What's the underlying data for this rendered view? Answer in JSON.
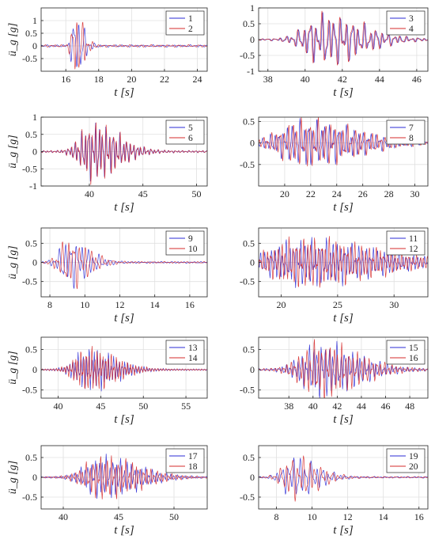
{
  "figure": {
    "ylabel": "ü_g [g]",
    "xlabel": "t [s]"
  },
  "chart_data": [
    {
      "type": "line",
      "xlabel": "t [s]",
      "ylabel": "ü_g [g]",
      "xlim": [
        14.5,
        24.6
      ],
      "ylim": [
        -1.0,
        1.5
      ],
      "xticks": [
        16,
        18,
        20,
        22,
        24
      ],
      "yticks": [
        -0.5,
        0,
        0.5,
        1
      ],
      "grid": true,
      "legend": "top-right",
      "event_time": 16.6,
      "env": [
        0.3,
        0.6,
        1.45
      ],
      "series": [
        {
          "name": "1",
          "color": "#2b2bd6"
        },
        {
          "name": "2",
          "color": "#d62b2b"
        }
      ]
    },
    {
      "type": "line",
      "xlabel": "t [s]",
      "ylabel": "",
      "xlim": [
        37.5,
        46.6
      ],
      "ylim": [
        -1.0,
        1.0
      ],
      "xticks": [
        38,
        40,
        42,
        44,
        46
      ],
      "yticks": [
        -1,
        -0.5,
        0,
        0.5,
        1
      ],
      "grid": true,
      "legend": "top-right",
      "event_time": 41.0,
      "env": [
        1.3,
        0.7,
        0.9
      ],
      "series": [
        {
          "name": "3",
          "color": "#2b2bd6"
        },
        {
          "name": "4",
          "color": "#d62b2b"
        }
      ]
    },
    {
      "type": "line",
      "xlabel": "t [s]",
      "ylabel": "ü_g [g]",
      "xlim": [
        35.5,
        51.0
      ],
      "ylim": [
        -1.0,
        1.0
      ],
      "xticks": [
        40,
        45,
        50
      ],
      "yticks": [
        -1,
        -0.5,
        0,
        0.5,
        1
      ],
      "grid": true,
      "legend": "top-right",
      "event_time": 40.3,
      "env": [
        1.5,
        0.85,
        0.95
      ],
      "series": [
        {
          "name": "5",
          "color": "#2b2bd6"
        },
        {
          "name": "6",
          "color": "#d62b2b"
        }
      ]
    },
    {
      "type": "line",
      "xlabel": "t [s]",
      "ylabel": "",
      "xlim": [
        18.0,
        31.0
      ],
      "ylim": [
        -1.0,
        0.6
      ],
      "xticks": [
        20,
        22,
        24,
        26,
        28,
        30
      ],
      "yticks": [
        -0.5,
        0,
        0.5
      ],
      "grid": true,
      "legend": "top-right",
      "event_time": 21.5,
      "env": [
        2.5,
        0.85,
        0.6
      ],
      "series": [
        {
          "name": "7",
          "color": "#2b2bd6"
        },
        {
          "name": "8",
          "color": "#d62b2b"
        }
      ]
    },
    {
      "type": "line",
      "xlabel": "t [s]",
      "ylabel": "ü_g [g]",
      "xlim": [
        7.5,
        17.0
      ],
      "ylim": [
        -0.9,
        0.9
      ],
      "xticks": [
        8,
        10,
        12,
        14,
        16
      ],
      "yticks": [
        -0.5,
        0,
        0.5
      ],
      "grid": true,
      "legend": "top-right",
      "event_time": 9.1,
      "env": [
        0.7,
        0.75,
        0.7
      ],
      "series": [
        {
          "name": "9",
          "color": "#2b2bd6"
        },
        {
          "name": "10",
          "color": "#d62b2b"
        }
      ]
    },
    {
      "type": "line",
      "xlabel": "t [s]",
      "ylabel": "",
      "xlim": [
        18.0,
        33.0
      ],
      "ylim": [
        -0.9,
        0.9
      ],
      "xticks": [
        20,
        25,
        30
      ],
      "yticks": [
        -0.5,
        0,
        0.5
      ],
      "grid": true,
      "legend": "top-right",
      "event_time": 22.0,
      "env": [
        4.0,
        0.8,
        0.7
      ],
      "series": [
        {
          "name": "11",
          "color": "#2b2bd6"
        },
        {
          "name": "12",
          "color": "#d62b2b"
        }
      ]
    },
    {
      "type": "line",
      "xlabel": "t [s]",
      "ylabel": "ü_g [g]",
      "xlim": [
        38.0,
        57.5
      ],
      "ylim": [
        -0.7,
        0.8
      ],
      "xticks": [
        40,
        45,
        50,
        55
      ],
      "yticks": [
        -0.5,
        0,
        0.5
      ],
      "grid": true,
      "legend": "top-right",
      "event_time": 43.5,
      "env": [
        2.0,
        0.8,
        0.6
      ],
      "series": [
        {
          "name": "13",
          "color": "#2b2bd6"
        },
        {
          "name": "14",
          "color": "#d62b2b"
        }
      ]
    },
    {
      "type": "line",
      "xlabel": "t [s]",
      "ylabel": "",
      "xlim": [
        35.5,
        49.5
      ],
      "ylim": [
        -0.7,
        0.8
      ],
      "xticks": [
        38,
        40,
        42,
        44,
        46,
        48
      ],
      "yticks": [
        -0.5,
        0,
        0.5
      ],
      "grid": true,
      "legend": "top-right",
      "event_time": 40.5,
      "env": [
        2.0,
        0.6,
        0.75
      ],
      "series": [
        {
          "name": "15",
          "color": "#2b2bd6"
        },
        {
          "name": "16",
          "color": "#d62b2b"
        }
      ]
    },
    {
      "type": "line",
      "xlabel": "t [s]",
      "ylabel": "ü_g [g]",
      "xlim": [
        38.0,
        53.0
      ],
      "ylim": [
        -0.8,
        0.8
      ],
      "xticks": [
        40,
        45,
        50
      ],
      "yticks": [
        -0.5,
        0,
        0.5
      ],
      "grid": true,
      "legend": "top-right",
      "event_time": 43.5,
      "env": [
        2.0,
        0.7,
        0.6
      ],
      "series": [
        {
          "name": "17",
          "color": "#2b2bd6"
        },
        {
          "name": "18",
          "color": "#d62b2b"
        }
      ]
    },
    {
      "type": "line",
      "xlabel": "t [s]",
      "ylabel": "",
      "xlim": [
        7.0,
        16.5
      ],
      "ylim": [
        -0.8,
        0.8
      ],
      "xticks": [
        8,
        10,
        12,
        14,
        16
      ],
      "yticks": [
        -0.5,
        0,
        0.5
      ],
      "grid": true,
      "legend": "top-right",
      "event_time": 9.0,
      "env": [
        0.8,
        0.7,
        0.6
      ],
      "series": [
        {
          "name": "19",
          "color": "#2b2bd6"
        },
        {
          "name": "20",
          "color": "#d62b2b"
        }
      ]
    }
  ]
}
